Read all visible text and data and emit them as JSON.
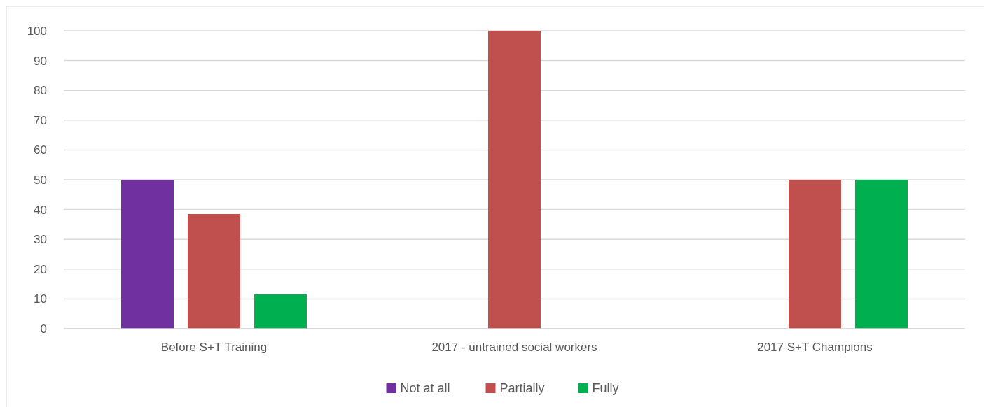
{
  "chart_data": {
    "type": "bar",
    "categories": [
      "Before S+T Training",
      "2017 - untrained social workers",
      "2017 S+T Champions"
    ],
    "series": [
      {
        "name": "Not at all",
        "color": "#7030a0",
        "values": [
          50,
          0,
          0
        ]
      },
      {
        "name": "Partially",
        "color": "#c0504d",
        "values": [
          38.5,
          100,
          50
        ]
      },
      {
        "name": "Fully",
        "color": "#00b050",
        "values": [
          11.5,
          0,
          50
        ]
      }
    ],
    "ylim": [
      0,
      100
    ],
    "yticks": [
      0,
      10,
      20,
      30,
      40,
      50,
      60,
      70,
      80,
      90,
      100
    ],
    "grid": "y",
    "legend": "bottom"
  }
}
